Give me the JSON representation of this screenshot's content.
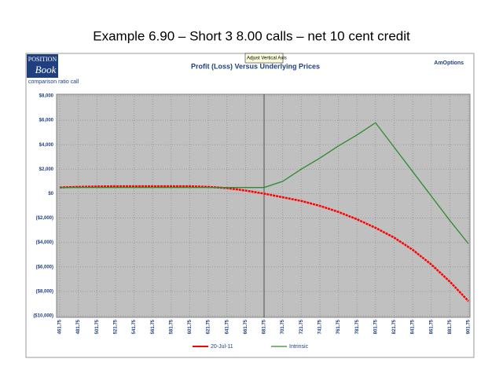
{
  "slide_title": "Example 6.90 – Short 3 8.00 calls – net 10 cent credit",
  "app": {
    "logo_top": "POSITION",
    "logo_bottom": "Book",
    "subtitle": "comparison ratio call",
    "brand": "AmOptions",
    "tooltip": "Adjust Vertical Axis"
  },
  "chart_data": {
    "type": "line",
    "title": "Profit (Loss) Versus Underlying Prices",
    "x": [
      461.75,
      481.75,
      501.75,
      521.75,
      541.75,
      561.75,
      581.75,
      601.75,
      621.75,
      641.75,
      661.75,
      681.75,
      701.75,
      721.75,
      741.75,
      761.75,
      781.75,
      801.75,
      821.75,
      841.75,
      861.75,
      881.75,
      901.75
    ],
    "series": [
      {
        "name": "20-Jul-11",
        "color": "#ff0000",
        "values": [
          500,
          550,
          580,
          600,
          600,
          600,
          600,
          600,
          550,
          450,
          250,
          0,
          -300,
          -600,
          -1000,
          -1500,
          -2100,
          -2800,
          -3600,
          -4600,
          -5800,
          -7200,
          -8800
        ]
      },
      {
        "name": "Intrinsic",
        "color": "#2e8b2e",
        "values": [
          500,
          500,
          500,
          500,
          500,
          500,
          500,
          500,
          500,
          500,
          500,
          500,
          1000,
          2000,
          2900,
          3900,
          4800,
          5800,
          3800,
          1800,
          -200,
          -2200,
          -4100
        ]
      }
    ],
    "xlim": [
      461.75,
      901.75
    ],
    "xticks": [
      461.75,
      481.75,
      501.75,
      521.75,
      541.75,
      561.75,
      581.75,
      601.75,
      621.75,
      641.75,
      661.75,
      681.75,
      701.75,
      721.75,
      741.75,
      761.75,
      781.75,
      801.75,
      821.75,
      841.75,
      861.75,
      881.75,
      901.75
    ],
    "ylim": [
      -10000,
      8000
    ],
    "yticks": [
      {
        "value": 8000,
        "label": "$8,000"
      },
      {
        "value": 6000,
        "label": "$6,000"
      },
      {
        "value": 4000,
        "label": "$4,000"
      },
      {
        "value": 2000,
        "label": "$2,000"
      },
      {
        "value": 0,
        "label": "$0"
      },
      {
        "value": -2000,
        "label": "($2,000)"
      },
      {
        "value": -4000,
        "label": "($4,000)"
      },
      {
        "value": -6000,
        "label": "($6,000)"
      },
      {
        "value": -8000,
        "label": "($8,000)"
      },
      {
        "value": -10000,
        "label": "($10,000)"
      }
    ],
    "reference_x": 681.75,
    "grid": true,
    "legend": "bottom"
  }
}
